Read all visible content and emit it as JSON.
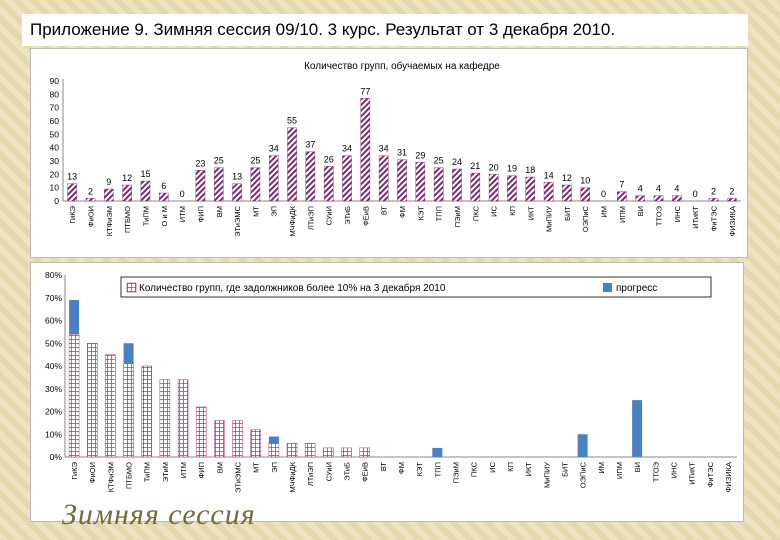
{
  "slide": {
    "title": "Приложение 9. Зимняя сессия 09/10.   3 курс.  Результат от 3 декабря 2010.",
    "watermark": "Зимняя сессия"
  },
  "colors": {
    "bar_purple": "#7b2c6e",
    "bar_blue": "#4a80c4",
    "pink_grid": "#c0308a"
  },
  "chart_data": [
    {
      "type": "bar",
      "title": "Количество групп, обучаемых на кафедре",
      "categories": [
        "ГиКЭ",
        "ФиОИ",
        "КТФиЭМ",
        "ПТБМО",
        "ТиПМ",
        "О и М",
        "ИТМ",
        "ФИП",
        "ВМ",
        "ЭТиЭМС",
        "МТ",
        "ЭП",
        "МЧФиДК",
        "ЛТиЭП",
        "СУиИ",
        "ЭТиБ",
        "ФЕиВ",
        "ВТ",
        "ФМ",
        "КЭТ",
        "ТПП",
        "ПЭиМ",
        "ПКС",
        "ИС",
        "КП",
        "ИКТ",
        "МиПИУ",
        "БИТ",
        "ОЭПиС",
        "ИМ",
        "ИПМ",
        "ВИ",
        "ТТОЭ",
        "ИНС",
        "ИТиКТ",
        "ФиТЭС",
        "ФИЗИКА"
      ],
      "values": [
        13,
        2,
        9,
        12,
        15,
        6,
        0,
        23,
        25,
        13,
        25,
        34,
        55,
        37,
        26,
        34,
        77,
        34,
        31,
        29,
        25,
        24,
        21,
        20,
        19,
        18,
        14,
        12,
        10,
        0,
        7,
        4,
        4,
        4,
        0,
        2,
        2
      ],
      "labels": [
        "13",
        "2",
        "9",
        "12",
        "15",
        "6",
        "0",
        "23",
        "25",
        "13",
        "25",
        "34",
        "55",
        "37",
        "26",
        "34",
        "77",
        "34",
        "31",
        "29",
        "25",
        "24",
        "21",
        "20",
        "19",
        "18",
        "14",
        "12",
        "10",
        "0",
        "7",
        "4",
        "4",
        "4",
        "0",
        "2",
        "2"
      ],
      "ylim": [
        0,
        90
      ],
      "yticks": [
        "0",
        "10",
        "20",
        "30",
        "40",
        "50",
        "60",
        "70",
        "80",
        "90"
      ],
      "xlabel": "",
      "ylabel": ""
    },
    {
      "type": "bar",
      "title": "",
      "categories": [
        "ГиКЭ",
        "ФиОИ",
        "КТФиЭМ",
        "ПТБМО",
        "ТиПМ",
        "ЭТиМ",
        "ИТМ",
        "ФИП",
        "ВМ",
        "ЭТиЭМС",
        "МТ",
        "ЭП",
        "МЧФиДК",
        "ЛТиЭП",
        "СУиИ",
        "ЭТиБ",
        "ФЕиВ",
        "ВТ",
        "ФМ",
        "КЭТ",
        "ТПП",
        "ПЭиМ",
        "ПКС",
        "ИС",
        "КП",
        "ИКТ",
        "МиПИУ",
        "БИТ",
        "ОЭПиС",
        "ИМ",
        "ИПМ",
        "ВИ",
        "ТТОЭ",
        "ИНС",
        "ИТиКТ",
        "ФиТЭС",
        "ФИЗИКА"
      ],
      "series": [
        {
          "name": "Количество групп, где задолжников более  10% на 3 декабря 2010",
          "values": [
            54,
            50,
            45,
            41,
            40,
            34,
            34,
            22,
            16,
            16,
            12,
            6,
            6,
            6,
            4,
            4,
            4,
            0,
            0,
            0,
            0,
            0,
            0,
            0,
            0,
            0,
            0,
            0,
            0,
            0,
            0,
            0,
            0,
            0,
            0,
            0,
            0
          ]
        },
        {
          "name": "прогресс",
          "values": [
            15,
            0,
            0,
            9,
            0,
            0,
            0,
            0,
            0,
            0,
            0,
            3,
            0,
            0,
            0,
            0,
            0,
            0,
            0,
            0,
            4,
            0,
            0,
            0,
            0,
            0,
            0,
            0,
            10,
            0,
            0,
            25,
            0,
            0,
            0,
            0,
            0
          ]
        }
      ],
      "ylim": [
        0,
        80
      ],
      "yticks": [
        "0%",
        "10%",
        "20%",
        "30%",
        "40%",
        "50%",
        "60%",
        "70%",
        "80%"
      ],
      "legend_position": "top",
      "xlabel": "",
      "ylabel": ""
    }
  ]
}
